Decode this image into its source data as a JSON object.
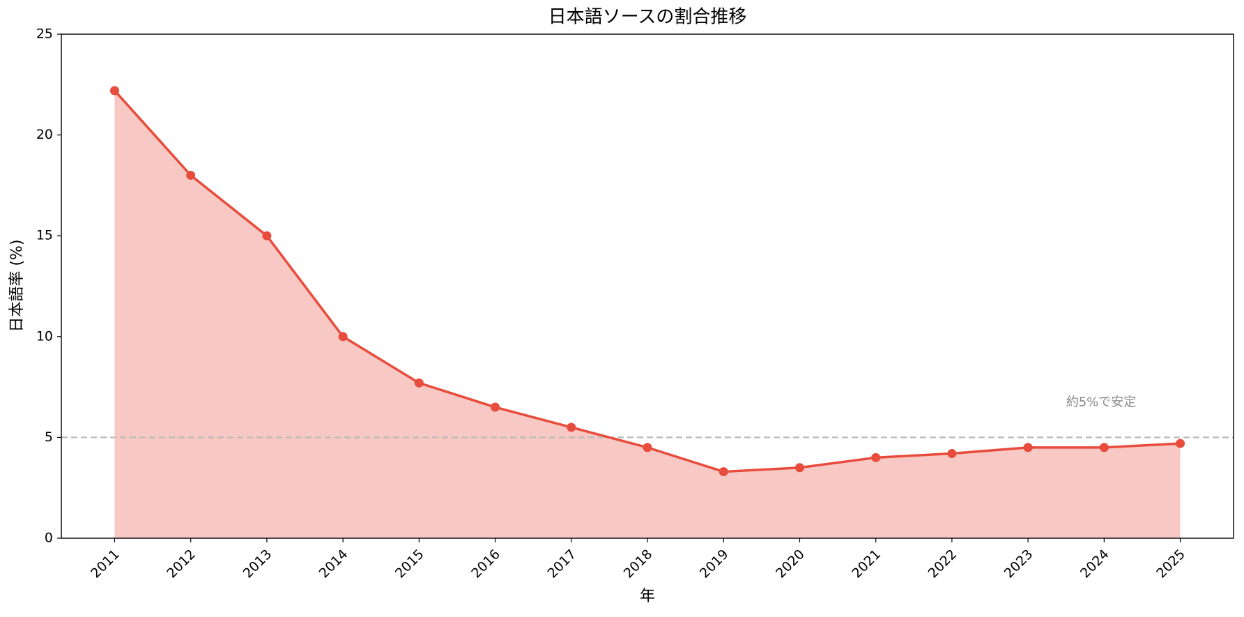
{
  "chart_data": {
    "type": "line",
    "title": "日本語ソースの割合推移",
    "x_label": "年",
    "y_label": "日本語率 (%)",
    "x": [
      2011,
      2012,
      2013,
      2014,
      2015,
      2016,
      2017,
      2018,
      2019,
      2020,
      2021,
      2022,
      2023,
      2024,
      2025
    ],
    "series": [
      {
        "name": "日本語率",
        "color": "#e74c3c",
        "values": [
          22.2,
          18,
          15,
          10,
          7.7,
          6.5,
          5.5,
          4.5,
          3.3,
          3.5,
          4.0,
          4.2,
          4.5,
          4.5,
          4.7
        ]
      }
    ],
    "area_fill": true,
    "xlim": [
      2010.3,
      2025.7
    ],
    "xticks": [
      2011,
      2012,
      2013,
      2014,
      2015,
      2016,
      2017,
      2018,
      2019,
      2020,
      2021,
      2022,
      2023,
      2024,
      2025
    ],
    "ylim": [
      0,
      25
    ],
    "yticks": [
      0,
      5,
      10,
      15,
      20,
      25
    ],
    "reference_line": {
      "value": 5,
      "color": "#bbbbbb"
    },
    "annotation": "約5%で安定"
  }
}
